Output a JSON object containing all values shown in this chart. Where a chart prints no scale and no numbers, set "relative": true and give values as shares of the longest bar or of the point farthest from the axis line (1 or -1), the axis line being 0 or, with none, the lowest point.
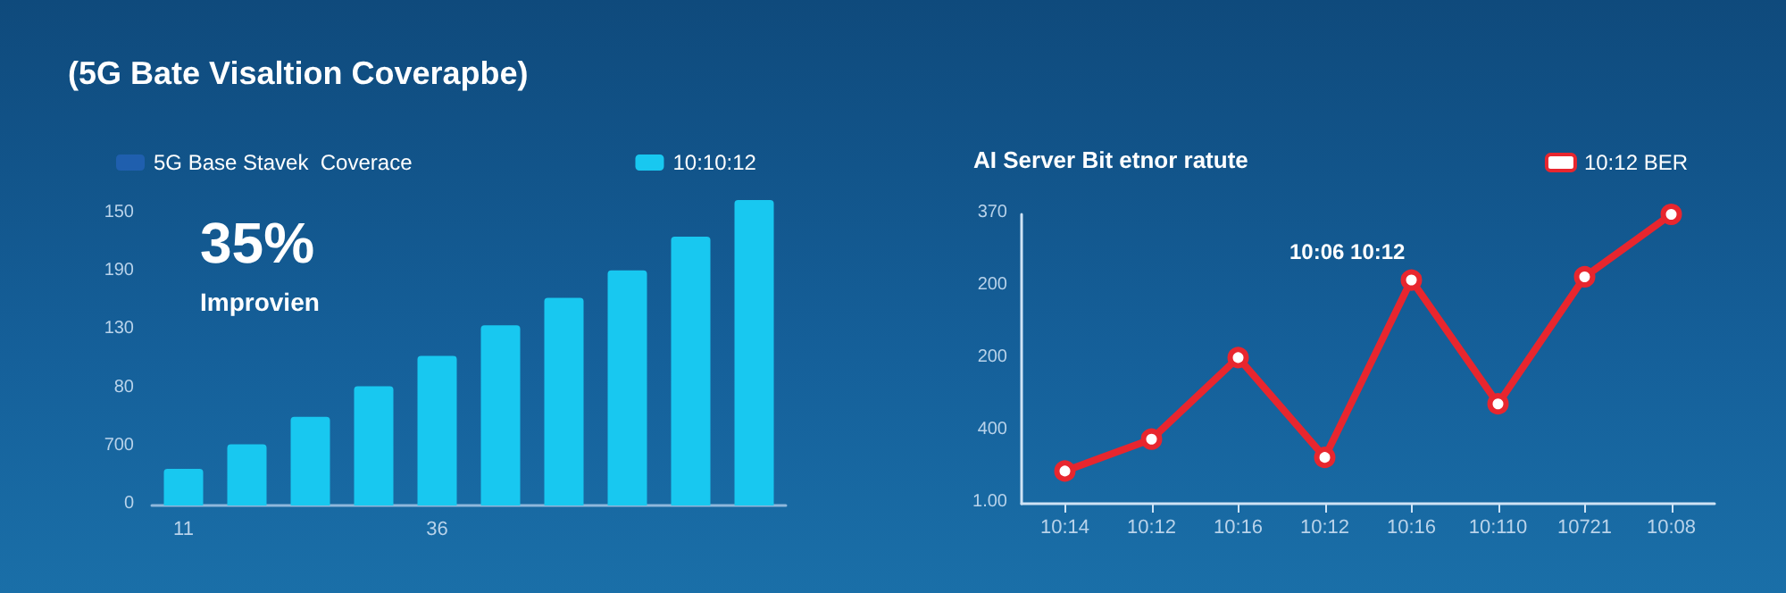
{
  "chart_data": [
    {
      "type": "bar",
      "title": "(5G Bate Visaltion Coverapbe)",
      "categories": [
        "11",
        null,
        null,
        null,
        "36",
        null,
        null,
        null,
        null,
        null
      ],
      "series": [
        {
          "name": "5G Base Stavek  Coverace",
          "color": "#1f5fae",
          "values": [
            null,
            null,
            null,
            null,
            null,
            null,
            null,
            null,
            null,
            null
          ]
        },
        {
          "name": "10:10:12",
          "color": "#18c8f0",
          "values": [
            0.12,
            0.2,
            0.29,
            0.39,
            0.49,
            0.59,
            0.68,
            0.77,
            0.88,
            1.0
          ]
        }
      ],
      "relative": true,
      "annotations": [
        "35%",
        "Improvien",
        "150",
        "190",
        "130",
        "80",
        "700",
        "0"
      ],
      "legend": "top"
    },
    {
      "type": "line",
      "title": "AI Server Bit etnor ratute",
      "categories": [
        "10:14",
        "10:12",
        "10:16",
        "10:12",
        "10:16",
        "10:110",
        "10721",
        "10:08"
      ],
      "series": [
        {
          "name": "10:12 BER",
          "color": "#e8262e",
          "values": [
            0.113,
            0.223,
            0.505,
            0.16,
            0.773,
            0.345,
            0.784,
            1.0
          ]
        }
      ],
      "relative": true,
      "annotations": [
        "10:06 10:12",
        "370",
        "200",
        "200",
        "400",
        "1.00"
      ],
      "legend": "top right",
      "marker": "circle",
      "line_style": "solid"
    }
  ]
}
